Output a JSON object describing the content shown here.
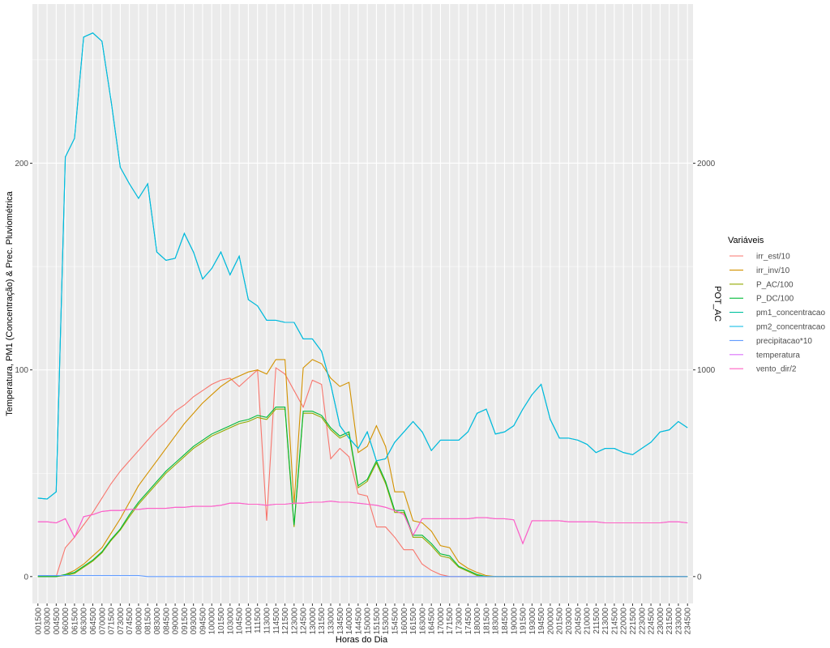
{
  "chart_data": {
    "type": "line",
    "xlabel": "Horas do Dia",
    "ylabel": "Temperatura, PM1 (Concentração) & Prec. Pluviométrica",
    "y2label": "POT_AC",
    "legend_title": "Variáveis",
    "legend": "right",
    "grid": true,
    "ylim": [
      -13,
      277
    ],
    "yticks": [
      0,
      100,
      200
    ],
    "y2lim": [
      -130,
      2770
    ],
    "y2ticks": [
      0,
      1000,
      2000
    ],
    "categories": [
      "001500",
      "003000",
      "004500",
      "060000",
      "061500",
      "063000",
      "064500",
      "070000",
      "071500",
      "073000",
      "074500",
      "080000",
      "081500",
      "083000",
      "084500",
      "090000",
      "091500",
      "093000",
      "094500",
      "100000",
      "101500",
      "103000",
      "104500",
      "110000",
      "111500",
      "113000",
      "114500",
      "121500",
      "123000",
      "124500",
      "130000",
      "131500",
      "133000",
      "134500",
      "140000",
      "144500",
      "150000",
      "151500",
      "153000",
      "154500",
      "160000",
      "161500",
      "163000",
      "164500",
      "170000",
      "171500",
      "173000",
      "174500",
      "180000",
      "181500",
      "183000",
      "184500",
      "190000",
      "191500",
      "193000",
      "194500",
      "200000",
      "201500",
      "203000",
      "204500",
      "210000",
      "211500",
      "213000",
      "214500",
      "220000",
      "221500",
      "223000",
      "224500",
      "230000",
      "231500",
      "233000",
      "234500"
    ],
    "series": [
      {
        "name": "irr_est/10",
        "color": "#F8766D",
        "values": [
          0,
          0,
          0,
          14,
          19,
          25,
          31,
          38,
          45,
          51,
          56,
          61,
          66,
          71,
          75,
          80,
          83,
          87,
          90,
          93,
          95,
          96,
          92,
          96,
          100,
          27,
          101,
          98,
          90,
          82,
          95,
          93,
          57,
          62,
          58,
          40,
          39,
          24,
          24,
          19,
          13,
          13,
          6,
          3,
          1,
          0,
          0,
          0,
          0,
          0,
          0,
          0,
          0,
          0,
          0,
          0,
          0,
          0,
          0,
          0,
          0,
          0,
          0,
          0,
          0,
          0,
          0,
          0,
          0,
          0,
          0,
          0
        ]
      },
      {
        "name": "irr_inv/10",
        "color": "#D39200",
        "values": [
          0,
          0,
          0,
          1,
          3,
          6,
          10,
          14,
          21,
          28,
          36,
          44,
          50,
          56,
          62,
          68,
          74,
          79,
          84,
          88,
          92,
          95,
          97,
          99,
          100,
          98,
          105,
          105,
          35,
          101,
          105,
          103,
          96,
          92,
          94,
          60,
          63,
          73,
          63,
          41,
          41,
          27,
          26,
          22,
          15,
          14,
          7,
          4,
          2,
          0.5,
          0,
          0,
          0,
          0,
          0,
          0,
          0,
          0,
          0,
          0,
          0,
          0,
          0,
          0,
          0,
          0,
          0,
          0,
          0,
          0,
          0,
          0
        ]
      },
      {
        "name": "P_AC/100",
        "color": "#93AA00",
        "values": [
          0,
          0,
          0,
          0.5,
          1.5,
          4.5,
          7.5,
          11.5,
          17.5,
          22.5,
          29,
          35,
          40,
          45,
          50,
          54,
          58,
          62,
          65,
          68,
          70,
          72,
          74,
          75,
          77,
          76,
          81,
          81,
          24,
          79,
          79,
          77,
          71,
          67,
          69,
          43,
          46,
          55,
          45,
          31,
          31,
          19,
          19,
          15,
          10,
          9,
          4.5,
          2.5,
          0.5,
          0,
          0,
          0,
          0,
          0,
          0,
          0,
          0,
          0,
          0,
          0,
          0,
          0,
          0,
          0,
          0,
          0,
          0,
          0,
          0,
          0,
          0,
          0
        ]
      },
      {
        "name": "P_DC/100",
        "color": "#00BA38",
        "values": [
          0,
          0,
          0,
          1,
          2,
          5,
          8,
          12,
          18,
          23,
          30,
          36,
          41,
          46,
          51,
          55,
          59,
          63,
          66,
          69,
          71,
          73,
          75,
          76,
          78,
          77,
          82,
          82,
          25,
          80,
          80,
          78,
          72,
          68,
          70,
          44,
          47,
          56,
          46,
          32,
          32,
          20,
          20,
          16,
          11,
          10,
          5,
          3,
          1,
          0,
          0,
          0,
          0,
          0,
          0,
          0,
          0,
          0,
          0,
          0,
          0,
          0,
          0,
          0,
          0,
          0,
          0,
          0,
          0,
          0,
          0,
          0
        ]
      },
      {
        "name": "pm1_concentracao",
        "color": "#00C19F",
        "values": [
          38,
          37.5,
          41,
          203,
          212,
          261,
          263,
          259,
          230,
          198,
          190,
          183,
          190,
          157,
          153,
          154,
          166,
          157,
          144,
          149,
          157,
          146,
          155,
          134,
          131,
          124,
          124,
          123,
          123,
          115,
          115,
          109,
          93,
          73,
          67,
          62,
          70,
          56,
          57,
          65,
          70,
          75,
          70,
          61,
          66,
          66,
          66,
          70,
          79,
          81,
          69,
          70,
          73,
          81,
          88,
          93,
          76,
          67,
          67,
          66,
          64,
          60,
          62,
          62,
          60,
          59,
          62,
          65,
          70,
          71,
          75,
          72
        ]
      },
      {
        "name": "pm2_concentracao",
        "color": "#00B9E3",
        "values": [
          38,
          37.5,
          41,
          203,
          212,
          261,
          263,
          259,
          230,
          198,
          190,
          183,
          190,
          157,
          153,
          154,
          166,
          157,
          144,
          149,
          157,
          146,
          155,
          134,
          131,
          124,
          124,
          123,
          123,
          115,
          115,
          109,
          93,
          73,
          67,
          62,
          70,
          56,
          57,
          65,
          70,
          75,
          70,
          61,
          66,
          66,
          66,
          70,
          79,
          81,
          69,
          70,
          73,
          81,
          88,
          93,
          76,
          67,
          67,
          66,
          64,
          60,
          62,
          62,
          60,
          59,
          62,
          65,
          70,
          71,
          75,
          72
        ]
      },
      {
        "name": "precipitacao*10",
        "color": "#619CFF",
        "values": [
          0.5,
          0.5,
          0.5,
          0.5,
          0.5,
          0.5,
          0.5,
          0.5,
          0.5,
          0.5,
          0.5,
          0.5,
          0,
          0,
          0,
          0,
          0,
          0,
          0,
          0,
          0,
          0,
          0,
          0,
          0,
          0,
          0,
          0,
          0,
          0,
          0,
          0,
          0,
          0,
          0,
          0,
          0,
          0,
          0,
          0,
          0,
          0,
          0,
          0,
          0,
          0,
          0,
          0,
          0,
          0,
          0,
          0,
          0,
          0,
          0,
          0,
          0,
          0,
          0,
          0,
          0,
          0,
          0,
          0,
          0,
          0,
          0,
          0,
          0,
          0,
          0,
          0
        ]
      },
      {
        "name": "temperatura",
        "color": "#DB72FB",
        "values": [
          26.5,
          26.5,
          26,
          28,
          19,
          29,
          30,
          31.5,
          32,
          32,
          32.5,
          32.5,
          33,
          33,
          33,
          33.5,
          33.5,
          34,
          34,
          34,
          34.5,
          35.5,
          35.5,
          35,
          35,
          34.5,
          35,
          35,
          35.5,
          35.5,
          36,
          36,
          36.5,
          36,
          36,
          35.5,
          35,
          34.5,
          33.5,
          32,
          30,
          20,
          28,
          28,
          28,
          28,
          28,
          28,
          28.5,
          28.5,
          28,
          28,
          27.5,
          16,
          27,
          27,
          27,
          27,
          26.5,
          26.5,
          26.5,
          26.5,
          26,
          26,
          26,
          26,
          26,
          26,
          26,
          26.5,
          26.5,
          26
        ]
      },
      {
        "name": "vento_dir/2",
        "color": "#FF61C3",
        "values": [
          26.5,
          26.5,
          26,
          28,
          19,
          29,
          30,
          31.5,
          32,
          32,
          32.5,
          32.5,
          33,
          33,
          33,
          33.5,
          33.5,
          34,
          34,
          34,
          34.5,
          35.5,
          35.5,
          35,
          35,
          34.5,
          35,
          35,
          35.5,
          35.5,
          36,
          36,
          36.5,
          36,
          36,
          35.5,
          35,
          34.5,
          33.5,
          32,
          30,
          20,
          28,
          28,
          28,
          28,
          28,
          28,
          28.5,
          28.5,
          28,
          28,
          27.5,
          16,
          27,
          27,
          27,
          27,
          26.5,
          26.5,
          26.5,
          26.5,
          26,
          26,
          26,
          26,
          26,
          26,
          26,
          26.5,
          26.5,
          26
        ]
      }
    ]
  }
}
